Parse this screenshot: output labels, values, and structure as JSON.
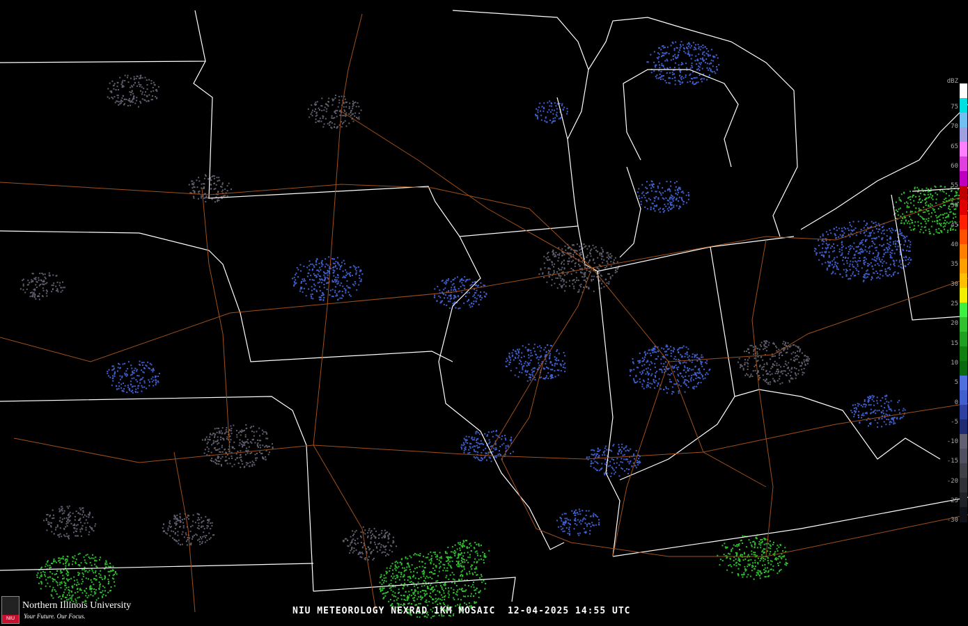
{
  "caption": {
    "product": "NIU METEOROLOGY NEXRAD 1KM MOSAIC",
    "datetime": "12-04-2025 14:55 UTC"
  },
  "logo": {
    "name": "Northern Illinois University",
    "tagline": "Your Future. Our Focus.",
    "seal_text": "NIU"
  },
  "legend": {
    "unit": "dBZ",
    "labels": [
      "75",
      "70",
      "65",
      "60",
      "55",
      "50",
      "45",
      "40",
      "35",
      "30",
      "25",
      "20",
      "15",
      "10",
      "5",
      "0",
      "-5",
      "-10",
      "-15",
      "-20",
      "-25",
      "-30"
    ],
    "colors": [
      "#ffffff",
      "#00e0e0",
      "#70c0f0",
      "#a0a0e0",
      "#ff80ff",
      "#e040e0",
      "#c000c0",
      "#c00000",
      "#e00000",
      "#ff2000",
      "#ff5000",
      "#ff8000",
      "#ffa000",
      "#ffc000",
      "#f0f000",
      "#40f040",
      "#30c030",
      "#20a020",
      "#108010",
      "#0a6a10",
      "#5070e0",
      "#4060d0",
      "#3040a0",
      "#202a70",
      "#606070",
      "#505060",
      "#404048",
      "#303038",
      "#202028",
      "#101018"
    ]
  },
  "colors": {
    "background": "#000000",
    "state_borders": "#ffffff",
    "roads": "#a0501a",
    "light_echo": "#4060d0",
    "moderate_echo": "#30c030",
    "clutter": "#606070"
  }
}
